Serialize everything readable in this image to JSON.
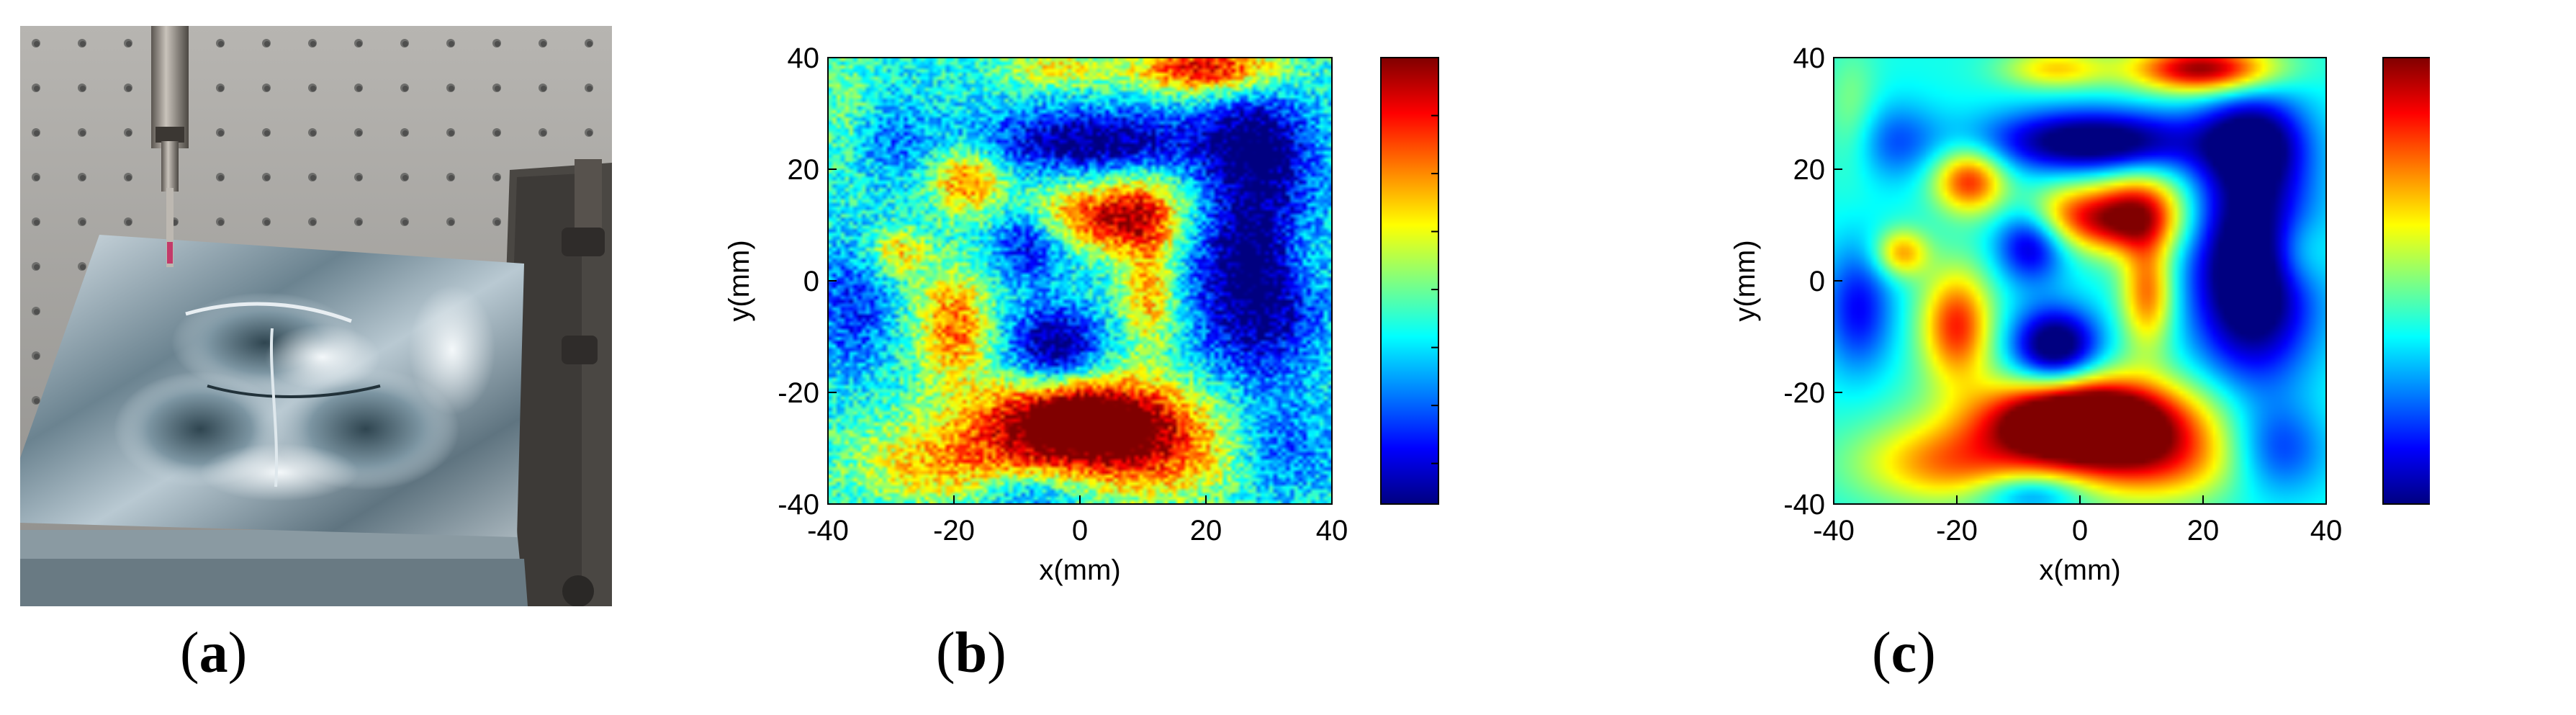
{
  "panels": [
    {
      "label_open": "(",
      "label_letter": "a",
      "label_close": ")"
    },
    {
      "label_open": "(",
      "label_letter": "b",
      "label_close": ")"
    },
    {
      "label_open": "(",
      "label_letter": "c",
      "label_close": ")"
    }
  ],
  "chart_data": [
    {
      "type": "heatmap",
      "title": "",
      "xlabel": "x(mm)",
      "ylabel": "y(mm)",
      "xlim": [
        -40,
        40
      ],
      "ylim": [
        -40,
        40
      ],
      "xticks": [
        -40,
        -20,
        0,
        20,
        40
      ],
      "yticks": [
        -40,
        -20,
        0,
        20,
        40
      ],
      "colorbar": {
        "min": -0.0135,
        "max": 0.025,
        "ticks": [
          0.025,
          0.02,
          0.015,
          0.01,
          0.005,
          0,
          -0.005,
          -0.01
        ],
        "colormap": "jet"
      },
      "noise": 0.0045,
      "grid": false
    },
    {
      "type": "heatmap",
      "title": "",
      "xlabel": "x(mm)",
      "ylabel": "y(mm)",
      "xlim": [
        -40,
        40
      ],
      "ylim": [
        -40,
        40
      ],
      "xticks": [
        -40,
        -20,
        0,
        20,
        40
      ],
      "yticks": [
        -40,
        -20,
        0,
        20,
        40
      ],
      "colorbar": {
        "min": -0.0115,
        "max": 0.0215,
        "ticks": [
          0.02,
          0.015,
          0.01,
          0.005,
          0,
          -0.005,
          -0.01
        ],
        "colormap": "jet"
      },
      "noise": 0,
      "grid": false
    }
  ],
  "field_features": [
    {
      "x": 0,
      "y": -25,
      "sx": 10,
      "sy": 5,
      "amp": 0.026
    },
    {
      "x": 5,
      "y": -27,
      "sx": 18,
      "sy": 7,
      "amp": 0.01
    },
    {
      "x": -22,
      "y": -33,
      "sx": 10,
      "sy": 5,
      "amp": 0.01
    },
    {
      "x": 12,
      "y": -33,
      "sx": 10,
      "sy": 5,
      "amp": 0.008
    },
    {
      "x": -20,
      "y": -8,
      "sx": 4,
      "sy": 7,
      "amp": 0.015
    },
    {
      "x": -18,
      "y": 18,
      "sx": 4,
      "sy": 4,
      "amp": 0.015
    },
    {
      "x": -29,
      "y": 5,
      "sx": 3,
      "sy": 3,
      "amp": 0.011
    },
    {
      "x": -2,
      "y": 12,
      "sx": 6,
      "sy": 4,
      "amp": 0.011
    },
    {
      "x": 8,
      "y": 10,
      "sx": 6,
      "sy": 4,
      "amp": 0.014
    },
    {
      "x": 11,
      "y": -2,
      "sx": 3,
      "sy": 7,
      "amp": 0.013
    },
    {
      "x": 10,
      "y": 15,
      "sx": 5,
      "sy": 4,
      "amp": 0.009
    },
    {
      "x": 20,
      "y": 38,
      "sx": 8,
      "sy": 3,
      "amp": 0.02
    },
    {
      "x": -4,
      "y": 38,
      "sx": 6,
      "sy": 2.5,
      "amp": 0.009
    },
    {
      "x": 35,
      "y": 5,
      "sx": 4,
      "sy": 5,
      "amp": 0.006
    },
    {
      "x": -37,
      "y": 30,
      "sx": 3,
      "sy": 8,
      "amp": 0.004
    },
    {
      "x": -4,
      "y": -12,
      "sx": 5,
      "sy": 5,
      "amp": -0.017
    },
    {
      "x": 28,
      "y": 2,
      "sx": 7,
      "sy": 14,
      "amp": -0.019
    },
    {
      "x": 2,
      "y": 25,
      "sx": 12,
      "sy": 4,
      "amp": -0.016
    },
    {
      "x": -8,
      "y": 7,
      "sx": 4,
      "sy": 5,
      "amp": -0.012
    },
    {
      "x": 28,
      "y": 25,
      "sx": 6,
      "sy": 6,
      "amp": -0.012
    },
    {
      "x": -36,
      "y": -5,
      "sx": 4,
      "sy": 8,
      "amp": -0.009
    },
    {
      "x": -30,
      "y": 25,
      "sx": 5,
      "sy": 5,
      "amp": -0.006
    },
    {
      "x": 32,
      "y": -30,
      "sx": 6,
      "sy": 6,
      "amp": -0.009
    },
    {
      "x": -8,
      "y": -38,
      "sx": 6,
      "sy": 2.5,
      "amp": -0.008
    }
  ]
}
